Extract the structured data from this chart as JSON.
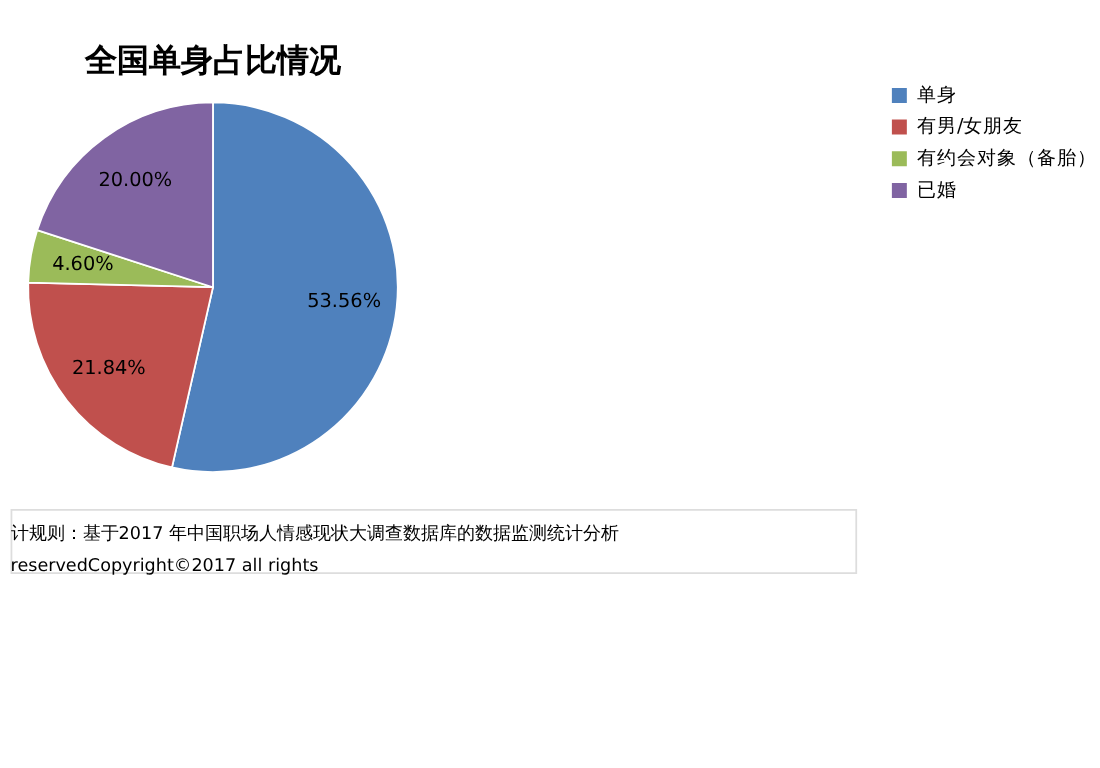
{
  "chart_data": {
    "type": "pie",
    "title": "全国单身占比情况",
    "categories": [
      "单身",
      "有男/女朋友",
      "有约会对象（备胎）",
      "已婚"
    ],
    "values": [
      53.56,
      21.84,
      4.6,
      20.0
    ],
    "colors": [
      "#4f81bd",
      "#c0504d",
      "#9bbb59",
      "#8064a2"
    ],
    "value_labels": [
      "53.56%",
      "21.84%",
      "4.60%",
      "20.00%"
    ],
    "legend": "right",
    "annotations": [
      "计规则：基于2017 年中国职场人情感现状大调查数据库的数据监测统计分析",
      "reservedCopyright©2017 all rights"
    ]
  }
}
